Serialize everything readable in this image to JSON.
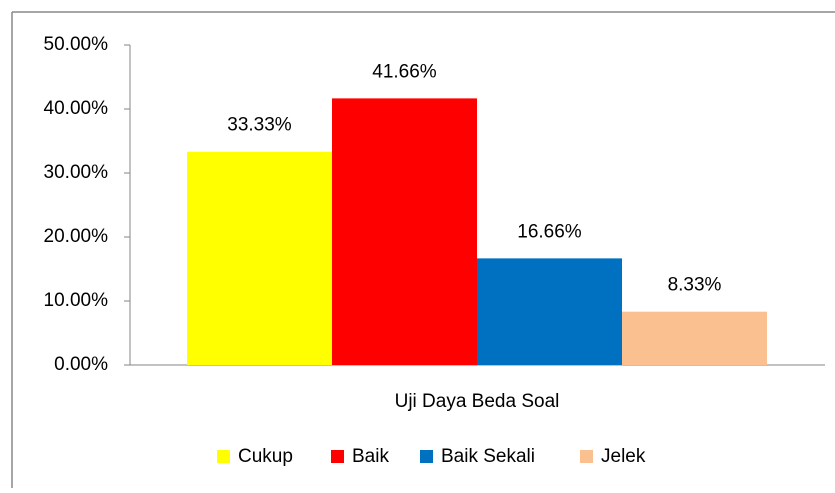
{
  "chart_data": {
    "type": "bar",
    "categories": [
      "Uji Daya Beda Soal"
    ],
    "series": [
      {
        "name": "Cukup",
        "color": "#ffff00",
        "values": [
          33.33
        ],
        "value_labels": [
          "33.33%"
        ]
      },
      {
        "name": "Baik",
        "color": "#ff0000",
        "values": [
          41.66
        ],
        "value_labels": [
          "41.66%"
        ]
      },
      {
        "name": "Baik Sekali",
        "color": "#0070c0",
        "values": [
          16.66
        ],
        "value_labels": [
          "16.66%"
        ]
      },
      {
        "name": "Jelek",
        "color": "#fac090",
        "values": [
          8.33
        ],
        "value_labels": [
          "8.33%"
        ]
      }
    ],
    "ylim": [
      0,
      50
    ],
    "yticks": [
      {
        "value": 0,
        "label": "0.00%"
      },
      {
        "value": 10,
        "label": "10.00%"
      },
      {
        "value": 20,
        "label": "20.00%"
      },
      {
        "value": 30,
        "label": "30.00%"
      },
      {
        "value": 40,
        "label": "40.00%"
      },
      {
        "value": 50,
        "label": "50.00%"
      }
    ],
    "legend": "bottom"
  }
}
